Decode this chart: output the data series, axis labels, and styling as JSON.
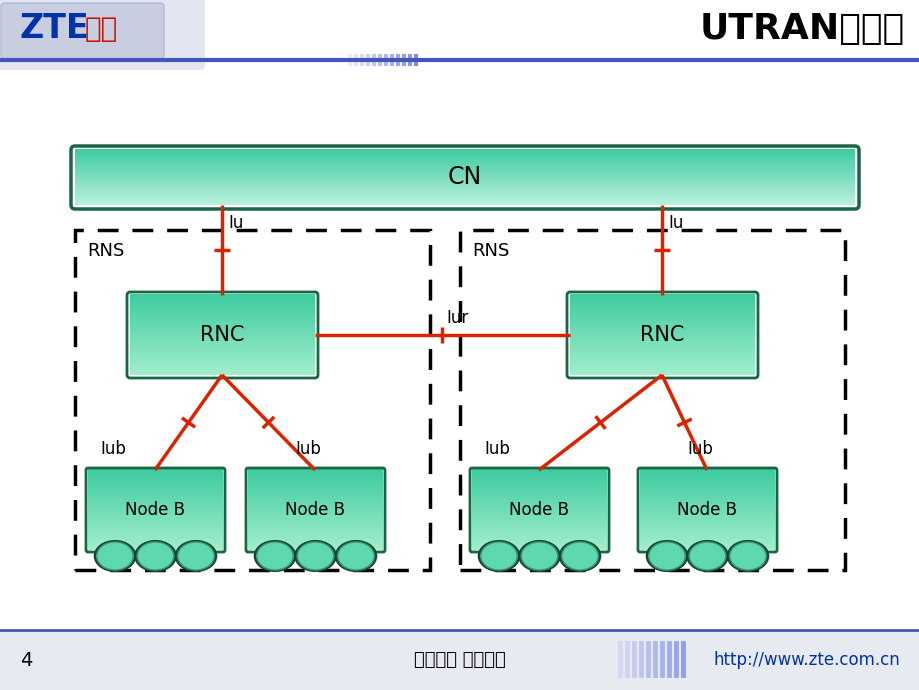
{
  "bg_color": "#e8eaf2",
  "title": "UTRAN的结构",
  "page_num": "4",
  "footer_center": "中兴通讯 版权所有",
  "footer_right": "http://www.zte.com.cn",
  "white_bg": true,
  "red_color": "#dd2200",
  "teal_light": "#7de8c8",
  "teal_mid": "#3ecba0",
  "teal_dark": "#2a9a78",
  "teal_edge": "#1a6644",
  "header_blue": "#4455bb",
  "zte_blue": "#0033aa",
  "zte_red": "#cc1100",
  "cn_label": "CN",
  "rnc_label": "RNC",
  "nodeb_label": "Node B",
  "rns_label": "RNS",
  "iu_label": "Iu",
  "iur_label": "Iur",
  "iub_label": "Iub"
}
